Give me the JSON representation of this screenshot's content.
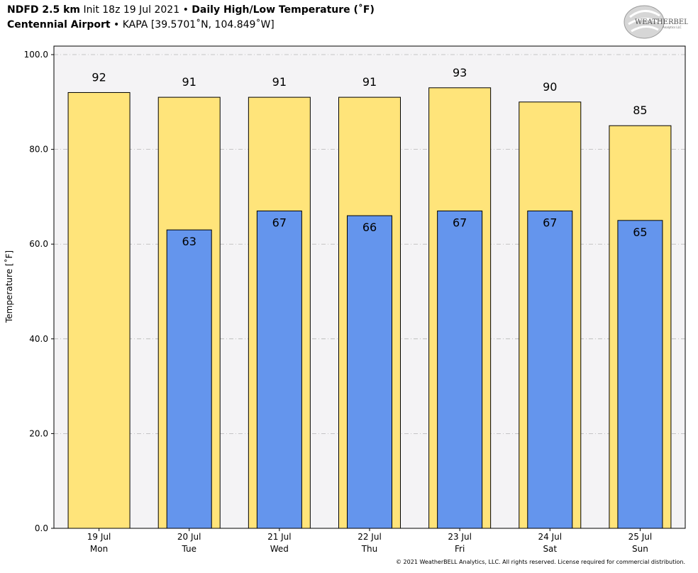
{
  "header": {
    "model": "NDFD 2.5 km",
    "init": "Init 18z 19 Jul 2021",
    "sep": "•",
    "product": "Daily High/Low Temperature (˚F)",
    "location": "Centennial Airport",
    "station": "KAPA [39.5701˚N, 104.849˚W]"
  },
  "logo": {
    "text": "WeatherBELL",
    "sub": "Analytics LLC"
  },
  "copyright": "© 2021 WeatherBELL Analytics, LLC. All rights reserved. License required for commercial distribution.",
  "chart_data": {
    "type": "bar",
    "categories": [
      "19 Jul\nMon",
      "20 Jul\nTue",
      "21 Jul\nWed",
      "22 Jul\nThu",
      "23 Jul\nFri",
      "24 Jul\nSat",
      "25 Jul\nSun"
    ],
    "category_dates": [
      "19 Jul",
      "20 Jul",
      "21 Jul",
      "22 Jul",
      "23 Jul",
      "24 Jul",
      "25 Jul"
    ],
    "category_days": [
      "Mon",
      "Tue",
      "Wed",
      "Thu",
      "Fri",
      "Sat",
      "Sun"
    ],
    "series": [
      {
        "name": "High",
        "values": [
          92,
          91,
          91,
          91,
          93,
          90,
          85
        ],
        "color": "#ffe47a"
      },
      {
        "name": "Low",
        "values": [
          null,
          63,
          67,
          66,
          67,
          67,
          65
        ],
        "color": "#6495ed"
      }
    ],
    "ylabel": "Temperature [˚F]",
    "ylim": [
      0,
      100
    ],
    "yticks": [
      0,
      20,
      40,
      60,
      80,
      100
    ],
    "ytick_labels": [
      "0.0",
      "20.0",
      "40.0",
      "60.0",
      "80.0",
      "100.0"
    ],
    "grid": true,
    "plot_background": "#f4f3f5"
  }
}
